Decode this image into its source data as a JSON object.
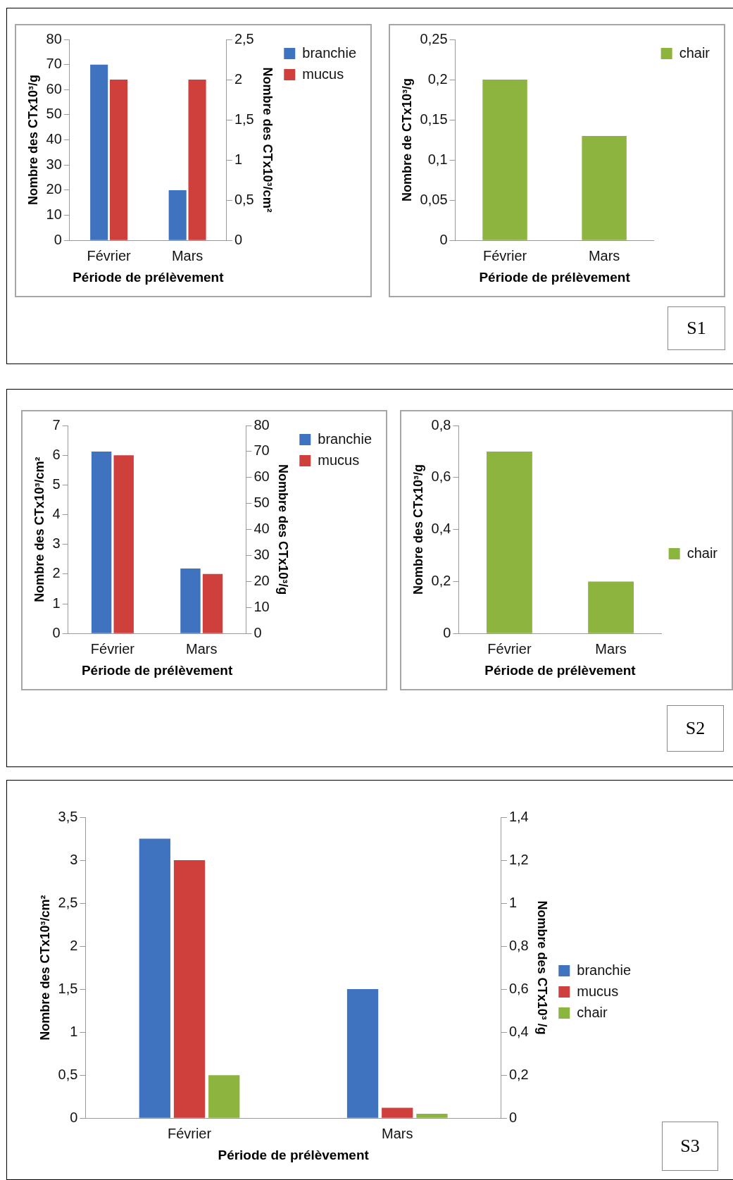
{
  "chart_data": [
    {
      "type": "bar",
      "categories": [
        "Février",
        "Mars"
      ],
      "xlabel": "Période de prélèvement",
      "ylabel": "Nombre des CTx10³/g",
      "y2label": "Nombre des CTx10³/cm²",
      "ylim": [
        0,
        80
      ],
      "yticks": [
        0,
        10,
        20,
        30,
        40,
        50,
        60,
        70,
        80
      ],
      "y2lim": [
        0,
        2.5
      ],
      "y2ticks": [
        0,
        {
          "value": 0.5,
          "label": "0,5"
        },
        1,
        {
          "value": 1.5,
          "label": "1,5"
        },
        2,
        {
          "value": 2.5,
          "label": "2,5"
        }
      ],
      "legend": "top right",
      "series": [
        {
          "name": "branchie",
          "color": "#3f73bf",
          "values": [
            70,
            20
          ]
        },
        {
          "name": "mucus",
          "color": "#cf3f3c",
          "values": [
            2,
            2
          ],
          "axis": "y2"
        }
      ]
    },
    {
      "type": "bar",
      "categories": [
        "Février",
        "Mars"
      ],
      "xlabel": "Période de prélèvement",
      "ylabel": "Nombre de CTx10³/g",
      "ylim": [
        0,
        0.25
      ],
      "yticks": [
        0,
        {
          "value": 0.05,
          "label": "0,05"
        },
        {
          "value": 0.1,
          "label": "0,1"
        },
        {
          "value": 0.15,
          "label": "0,15"
        },
        {
          "value": 0.2,
          "label": "0,2"
        },
        {
          "value": 0.25,
          "label": "0,25"
        }
      ],
      "legend": "top right",
      "series": [
        {
          "name": "chair",
          "color": "#8db43e",
          "values": [
            0.2,
            0.13
          ]
        }
      ]
    },
    {
      "type": "bar",
      "categories": [
        "Février",
        "Mars"
      ],
      "xlabel": "Période de prélèvement",
      "ylabel": "Nombre des CTx10³/cm²",
      "y2label": "Nombre des CTx10³/g",
      "ylim": [
        0,
        7
      ],
      "yticks": [
        0,
        1,
        2,
        3,
        4,
        5,
        6,
        7
      ],
      "y2lim": [
        0,
        80
      ],
      "y2ticks": [
        0,
        10,
        20,
        30,
        40,
        50,
        60,
        70,
        80
      ],
      "legend": "top right",
      "annotations": [
        "S1"
      ],
      "series": [
        {
          "name": "branchie",
          "color": "#3f73bf",
          "values": [
            70,
            25
          ],
          "axis": "y2"
        },
        {
          "name": "mucus",
          "color": "#cf3f3c",
          "values": [
            6,
            2
          ]
        }
      ]
    },
    {
      "type": "bar",
      "categories": [
        "Février",
        "Mars"
      ],
      "xlabel": "Période de prélèvement",
      "ylabel": "Nombre des CTx10³/g",
      "ylim": [
        0,
        0.8
      ],
      "yticks": [
        0,
        {
          "value": 0.2,
          "label": "0,2"
        },
        {
          "value": 0.4,
          "label": "0,4"
        },
        {
          "value": 0.6,
          "label": "0,6"
        },
        {
          "value": 0.8,
          "label": "0,8"
        }
      ],
      "legend": "right",
      "series": [
        {
          "name": "chair",
          "color": "#8db43e",
          "values": [
            0.7,
            0.2
          ]
        }
      ]
    },
    {
      "type": "bar",
      "categories": [
        "Février",
        "Mars"
      ],
      "xlabel": "Période de prélèvement",
      "ylabel": "Nombre des CTx10³/cm²",
      "y2label": "Nombre des CTx10³ /g",
      "ylim": [
        0,
        3.5
      ],
      "yticks": [
        0,
        {
          "value": 0.5,
          "label": "0,5"
        },
        1,
        {
          "value": 1.5,
          "label": "1,5"
        },
        2,
        {
          "value": 2.5,
          "label": "2,5"
        },
        3,
        {
          "value": 3.5,
          "label": "3,5"
        }
      ],
      "y2lim": [
        0,
        1.4
      ],
      "y2ticks": [
        0,
        {
          "value": 0.2,
          "label": "0,2"
        },
        {
          "value": 0.4,
          "label": "0,4"
        },
        {
          "value": 0.6,
          "label": "0,6"
        },
        {
          "value": 0.8,
          "label": "0,8"
        },
        1,
        {
          "value": 1.2,
          "label": "1,2"
        },
        {
          "value": 1.4,
          "label": "1,4"
        }
      ],
      "legend": "right",
      "annotations": [
        "S2",
        "S3"
      ],
      "series": [
        {
          "name": "branchie",
          "color": "#3f73bf",
          "values": [
            1.3,
            0.6
          ],
          "axis": "y2"
        },
        {
          "name": "mucus",
          "color": "#cf3f3c",
          "values": [
            3,
            0.12
          ]
        },
        {
          "name": "chair",
          "color": "#8db43e",
          "values": [
            0.2,
            0.02
          ],
          "axis": "y2"
        }
      ]
    }
  ]
}
